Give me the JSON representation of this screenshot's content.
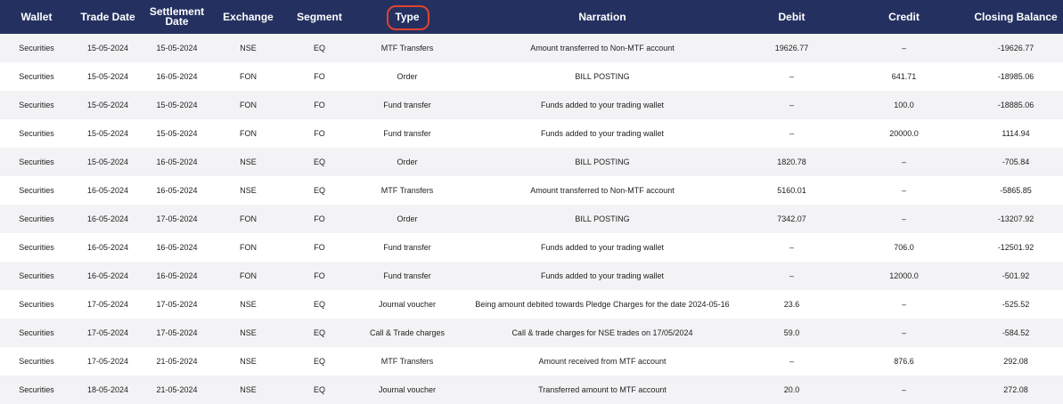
{
  "table": {
    "headers": [
      "Wallet",
      "Trade Date",
      "Settlement Date",
      "Exchange",
      "Segment",
      "Type",
      "Narration",
      "Debit",
      "Credit",
      "Closing Balance"
    ],
    "rows": [
      [
        "Securities",
        "15-05-2024",
        "15-05-2024",
        "NSE",
        "EQ",
        "MTF Transfers",
        "Amount transferred to Non-MTF account",
        "19626.77",
        "–",
        "-19626.77"
      ],
      [
        "Securities",
        "15-05-2024",
        "16-05-2024",
        "FON",
        "FO",
        "Order",
        "BILL POSTING",
        "–",
        "641.71",
        "-18985.06"
      ],
      [
        "Securities",
        "15-05-2024",
        "15-05-2024",
        "FON",
        "FO",
        "Fund transfer",
        "Funds added to your trading wallet",
        "–",
        "100.0",
        "-18885.06"
      ],
      [
        "Securities",
        "15-05-2024",
        "15-05-2024",
        "FON",
        "FO",
        "Fund transfer",
        "Funds added to your trading wallet",
        "–",
        "20000.0",
        "1114.94"
      ],
      [
        "Securities",
        "15-05-2024",
        "16-05-2024",
        "NSE",
        "EQ",
        "Order",
        "BILL POSTING",
        "1820.78",
        "–",
        "-705.84"
      ],
      [
        "Securities",
        "16-05-2024",
        "16-05-2024",
        "NSE",
        "EQ",
        "MTF Transfers",
        "Amount transferred to Non-MTF account",
        "5160.01",
        "–",
        "-5865.85"
      ],
      [
        "Securities",
        "16-05-2024",
        "17-05-2024",
        "FON",
        "FO",
        "Order",
        "BILL POSTING",
        "7342.07",
        "–",
        "-13207.92"
      ],
      [
        "Securities",
        "16-05-2024",
        "16-05-2024",
        "FON",
        "FO",
        "Fund transfer",
        "Funds added to your trading wallet",
        "–",
        "706.0",
        "-12501.92"
      ],
      [
        "Securities",
        "16-05-2024",
        "16-05-2024",
        "FON",
        "FO",
        "Fund transfer",
        "Funds added to your trading wallet",
        "–",
        "12000.0",
        "-501.92"
      ],
      [
        "Securities",
        "17-05-2024",
        "17-05-2024",
        "NSE",
        "EQ",
        "Journal voucher",
        "Being amount debited towards Pledge Charges for the date 2024-05-16",
        "23.6",
        "–",
        "-525.52"
      ],
      [
        "Securities",
        "17-05-2024",
        "17-05-2024",
        "NSE",
        "EQ",
        "Call & Trade charges",
        "Call & trade charges for NSE trades on 17/05/2024",
        "59.0",
        "–",
        "-584.52"
      ],
      [
        "Securities",
        "17-05-2024",
        "21-05-2024",
        "NSE",
        "EQ",
        "MTF Transfers",
        "Amount received from MTF account",
        "–",
        "876.6",
        "292.08"
      ],
      [
        "Securities",
        "18-05-2024",
        "21-05-2024",
        "NSE",
        "EQ",
        "Journal voucher",
        "Transferred amount to MTF account",
        "20.0",
        "–",
        "272.08"
      ]
    ]
  }
}
